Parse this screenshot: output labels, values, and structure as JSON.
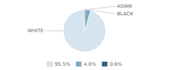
{
  "chart_data": {
    "type": "pie",
    "categories": [
      "WHITE",
      "ASIAN",
      "BLACK"
    ],
    "values": [
      95.5,
      4.0,
      0.6
    ],
    "value_labels": [
      "95.5%",
      "4.0%",
      "0.6%"
    ],
    "colors": [
      "#d6e4ef",
      "#7aaabf",
      "#2e6080"
    ],
    "legend": "bottom"
  }
}
